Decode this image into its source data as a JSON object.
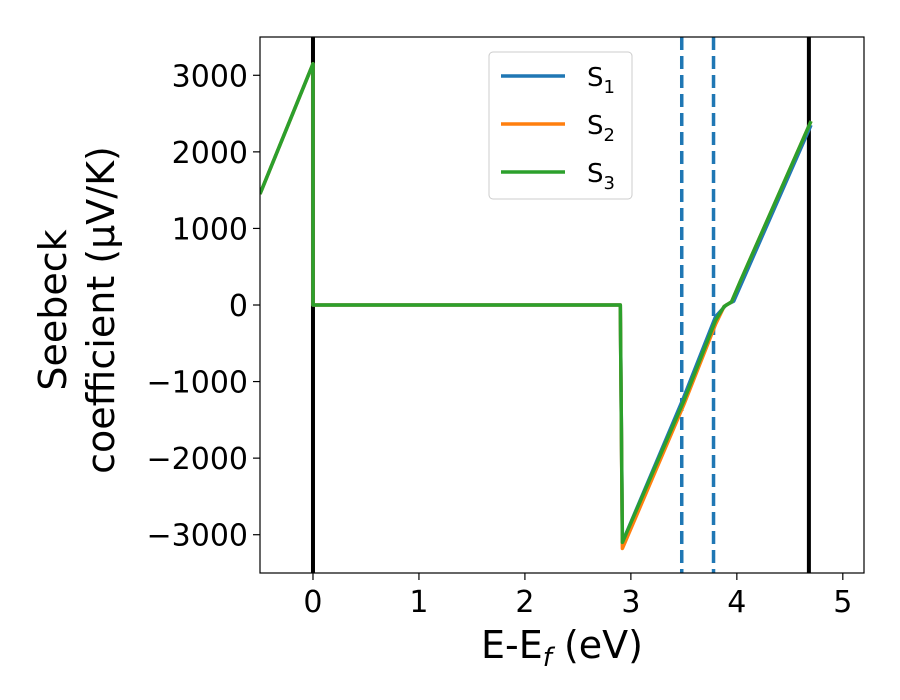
{
  "chart_data": {
    "type": "line",
    "xlabel": "E-E_f (eV)",
    "xlabel_main": "E-E",
    "xlabel_sub": "f",
    "xlabel_tail": " (eV)",
    "ylabel_line1": "Seebeck",
    "ylabel_line2": "coefficient  (μV/K)",
    "xlim": [
      -0.5,
      5.2
    ],
    "ylim": [
      -3500,
      3500
    ],
    "x_ticks": [
      0,
      1,
      2,
      3,
      4,
      5
    ],
    "x_tick_labels": [
      "0",
      "1",
      "2",
      "3",
      "4",
      "5"
    ],
    "y_ticks": [
      3000,
      2000,
      1000,
      0,
      -1000,
      -2000,
      -3000
    ],
    "y_tick_labels": [
      "3000",
      "2000",
      "1000",
      "0",
      "−1000",
      "−2000",
      "−3000"
    ],
    "legend_position": "top-center",
    "series": [
      {
        "name": "S1",
        "label_main": "S",
        "label_sub": "1",
        "color": "#1f77b4",
        "x": [
          -0.5,
          0.0,
          0.0,
          2.9,
          2.9,
          2.92,
          3.5,
          3.8,
          3.9,
          3.97,
          4.05,
          4.7
        ],
        "y": [
          1450,
          3150,
          0,
          0,
          0,
          -3100,
          -1200,
          -150,
          0,
          50,
          300,
          2350
        ]
      },
      {
        "name": "S2",
        "label_main": "S",
        "label_sub": "2",
        "color": "#ff7f0e",
        "x": [
          -0.5,
          0.0,
          0.0,
          2.9,
          2.9,
          2.92,
          3.5,
          3.8,
          3.88,
          3.95,
          4.03,
          4.7
        ],
        "y": [
          1450,
          3150,
          0,
          0,
          0,
          -3180,
          -1300,
          -250,
          -20,
          40,
          300,
          2400
        ]
      },
      {
        "name": "S3",
        "label_main": "S",
        "label_sub": "3",
        "color": "#2ca02c",
        "x": [
          -0.5,
          0.0,
          0.0,
          2.9,
          2.9,
          2.92,
          3.5,
          3.8,
          3.88,
          3.95,
          4.03,
          4.7
        ],
        "y": [
          1450,
          3150,
          0,
          0,
          0,
          -3100,
          -1250,
          -200,
          -20,
          40,
          300,
          2400
        ]
      }
    ],
    "vertical_lines": [
      {
        "x": 0.0,
        "style": "solid",
        "color": "#000000"
      },
      {
        "x": 4.68,
        "style": "solid",
        "color": "#000000"
      },
      {
        "x": 3.48,
        "style": "dashed",
        "color": "#1f77b4"
      },
      {
        "x": 3.78,
        "style": "dashed",
        "color": "#1f77b4"
      }
    ]
  }
}
